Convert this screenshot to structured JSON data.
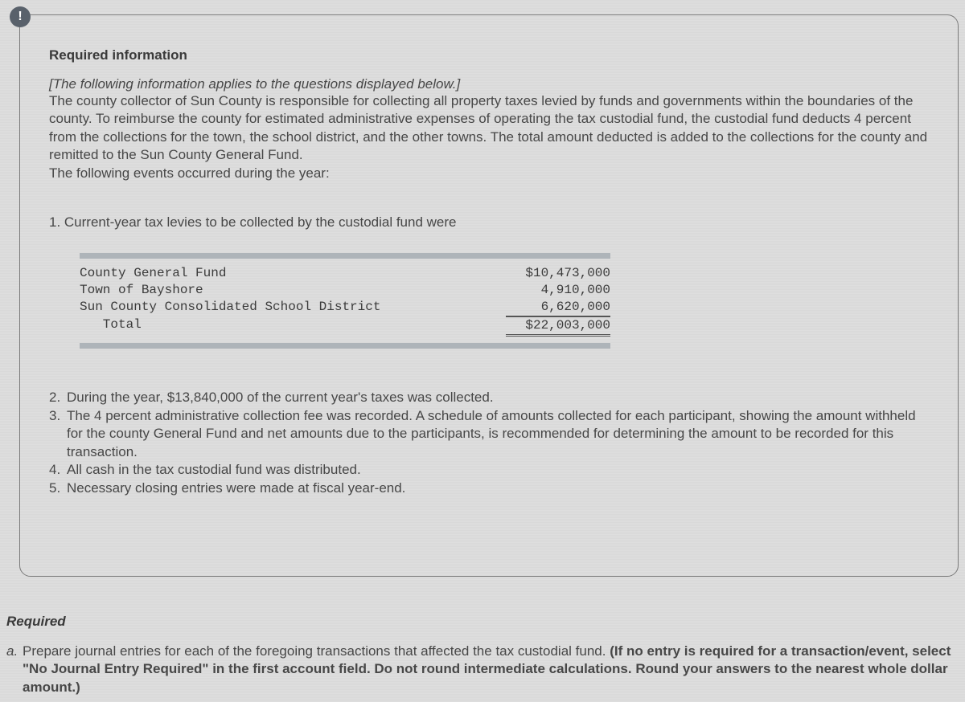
{
  "badge_glyph": "!",
  "heading": "Required information",
  "intro_italic": "[The following information applies to the questions displayed below.]",
  "intro_body": "The county collector of Sun County is responsible for collecting all property taxes levied by funds and governments within the boundaries of the county. To reimburse the county for estimated administrative expenses of operating the tax custodial fund, the custodial fund deducts 4 percent from the collections for the town, the school district, and the other towns. The total amount deducted is added to the collections for the county and remitted to the Sun County General Fund.",
  "intro_following": "The following events occurred during the year:",
  "event1": "1. Current-year tax levies to be collected by the custodial fund were",
  "levies": {
    "rows": [
      {
        "label": "County General Fund",
        "value": "$10,473,000"
      },
      {
        "label": "Town of Bayshore",
        "value": "4,910,000"
      },
      {
        "label": "Sun County Consolidated School District",
        "value": "6,620,000"
      }
    ],
    "total_label": "   Total",
    "total_value": "$22,003,000"
  },
  "events_rest": [
    {
      "n": "2.",
      "text": "During the year, $13,840,000 of the current year's taxes was collected."
    },
    {
      "n": "3.",
      "text": "The 4 percent administrative collection fee was recorded. A schedule of amounts collected for each participant, showing the amount withheld for the county General Fund and net amounts due to the participants, is recommended for determining the amount to be recorded for this transaction."
    },
    {
      "n": "4.",
      "text": "All cash in the tax custodial fund was distributed."
    },
    {
      "n": "5.",
      "text": "Necessary closing entries were made at fiscal year-end."
    }
  ],
  "required": {
    "head": "Required",
    "letter": "a.",
    "text_plain": "Prepare journal entries for each of the foregoing transactions that affected the tax custodial fund. ",
    "text_bold": "(If no entry is required for a transaction/event, select \"No Journal Entry Required\" in the first account field. Do not round intermediate calculations. Round your answers to the nearest whole dollar amount.)"
  },
  "colors": {
    "page_bg": "#dbdbdb",
    "badge_bg": "#59616b",
    "border": "#7a7a7a",
    "text": "#474747",
    "table_bar": "#aeb4b9"
  }
}
